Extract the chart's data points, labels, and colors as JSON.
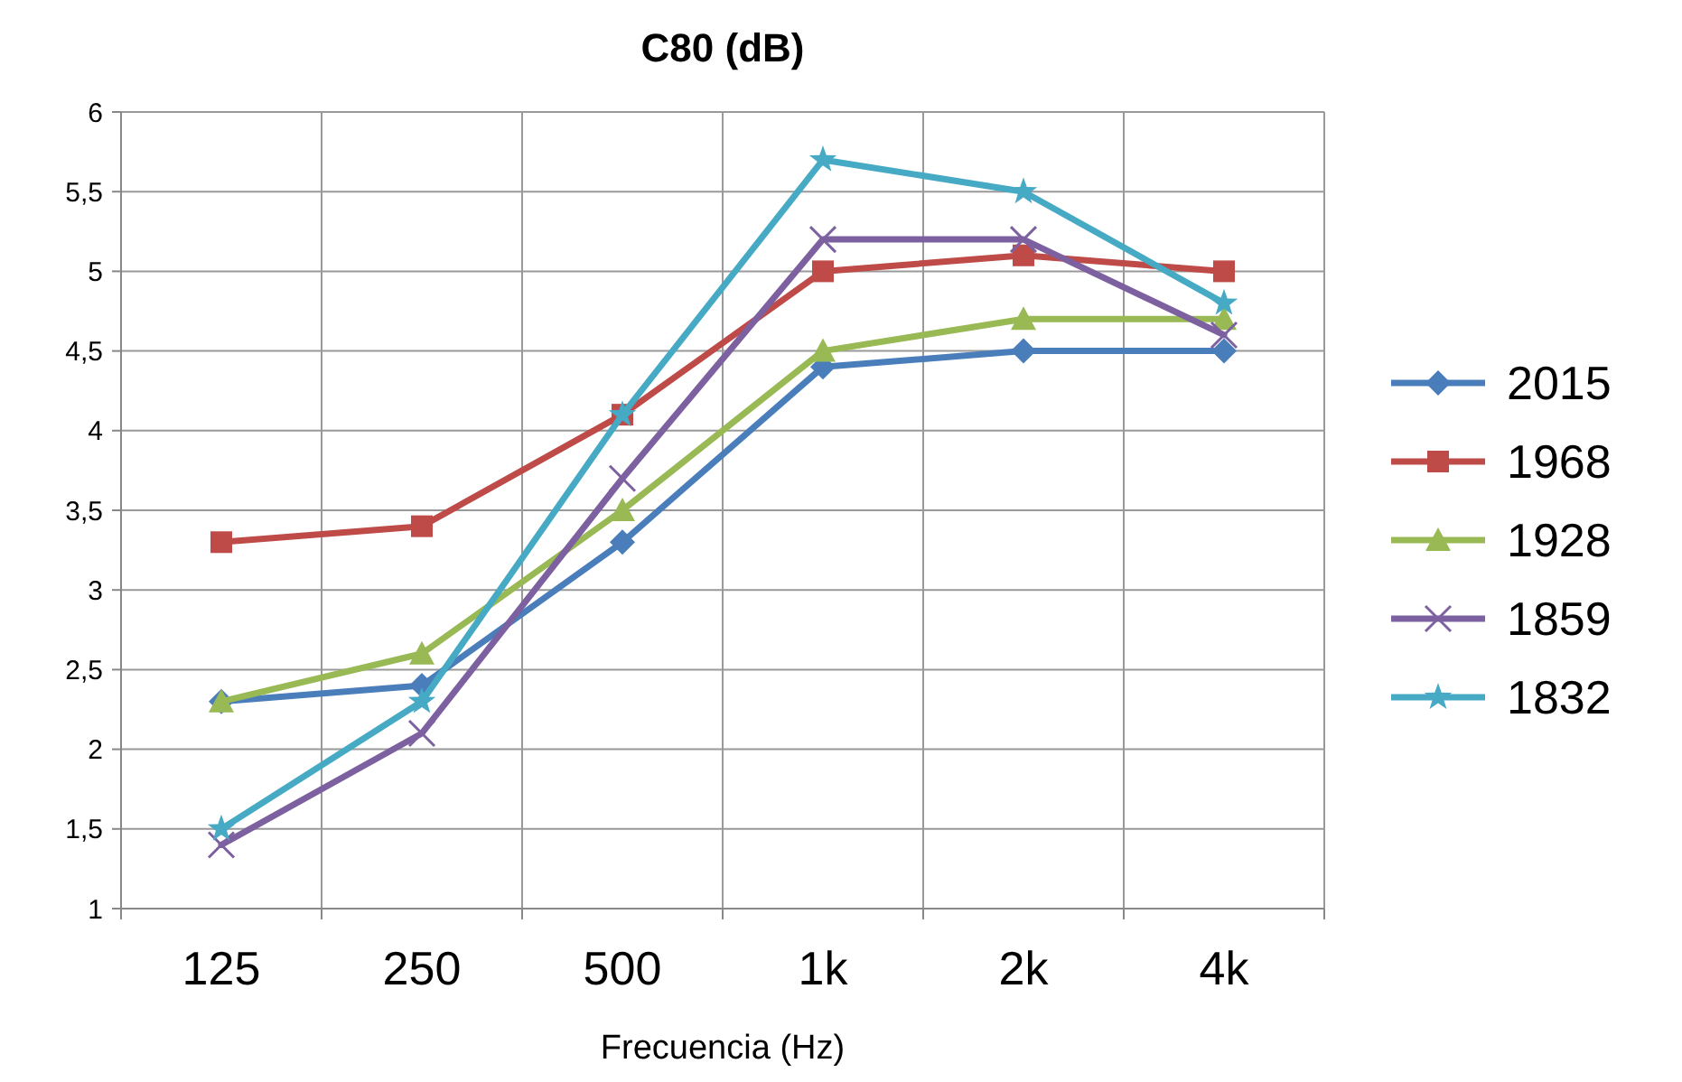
{
  "chart_data": {
    "type": "line",
    "title": "C80 (dB)",
    "xlabel": "Frecuencia (Hz)",
    "categories": [
      "125",
      "250",
      "500",
      "1k",
      "2k",
      "4k"
    ],
    "series": [
      {
        "name": "2015",
        "color": "#4a7ebb",
        "marker": "diamond",
        "values": [
          2.3,
          2.4,
          3.3,
          4.4,
          4.5,
          4.5
        ]
      },
      {
        "name": "1968",
        "color": "#be4b48",
        "marker": "square",
        "values": [
          3.3,
          3.4,
          4.1,
          5.0,
          5.1,
          5.0
        ]
      },
      {
        "name": "1928",
        "color": "#98b954",
        "marker": "triangle",
        "values": [
          2.3,
          2.6,
          3.5,
          4.5,
          4.7,
          4.7
        ]
      },
      {
        "name": "1859",
        "color": "#7d60a0",
        "marker": "cross",
        "values": [
          1.4,
          2.1,
          3.7,
          5.2,
          5.2,
          4.6
        ]
      },
      {
        "name": "1832",
        "color": "#46aac5",
        "marker": "star",
        "values": [
          1.5,
          2.3,
          4.1,
          5.7,
          5.5,
          4.8
        ]
      }
    ],
    "ylim": [
      1,
      6
    ],
    "yticks": [
      1,
      {
        "value": 1.5,
        "label": "1,5"
      },
      2,
      {
        "value": 2.5,
        "label": "2,5"
      },
      3,
      {
        "value": 3.5,
        "label": "3,5"
      },
      4,
      {
        "value": 4.5,
        "label": "4,5"
      },
      5,
      {
        "value": 5.5,
        "label": "5,5"
      },
      6
    ],
    "grid": true,
    "legend": "right",
    "line_style": "solid"
  }
}
